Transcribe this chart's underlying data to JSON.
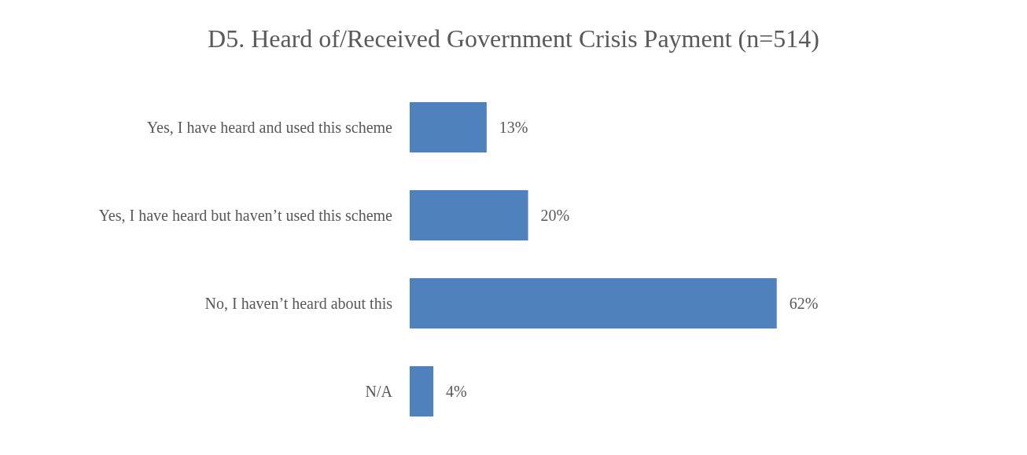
{
  "chart_data": {
    "type": "bar",
    "orientation": "horizontal",
    "title": "D5. Heard of/Received Government Crisis Payment (n=514)",
    "categories": [
      "Yes, I have heard and used this scheme",
      "Yes, I have heard but haven’t used this scheme",
      "No, I haven’t heard about this",
      "N/A"
    ],
    "values": [
      13,
      20,
      62,
      4
    ],
    "color": "#4f81bd",
    "value_labels": [
      "13%",
      "20%",
      "62%",
      "4%"
    ]
  }
}
